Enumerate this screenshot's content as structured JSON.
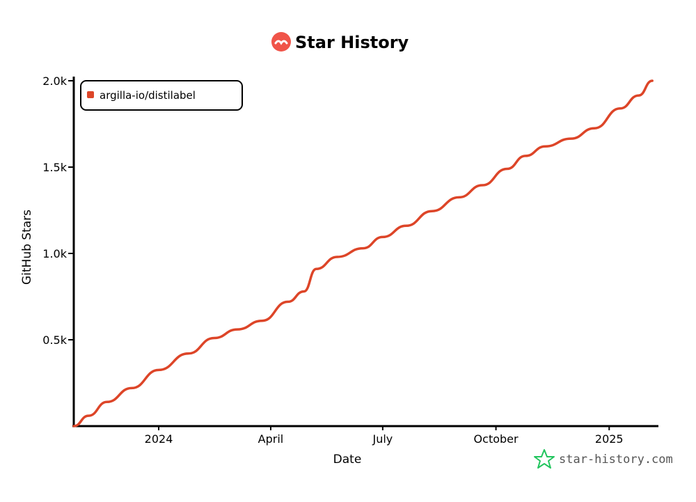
{
  "title": "Star History",
  "watermark": "star-history.com",
  "colors": {
    "series": "#dd4528",
    "title_icon": "#f05449",
    "watermark_icon": "#22c55e",
    "axis": "#000000"
  },
  "chart_data": {
    "type": "line",
    "title": "Star History",
    "xlabel": "Date",
    "ylabel": "GitHub Stars",
    "x_ticks": [
      {
        "date": "2024-01-01",
        "label": "2024"
      },
      {
        "date": "2024-04-01",
        "label": "April"
      },
      {
        "date": "2024-07-01",
        "label": "July"
      },
      {
        "date": "2024-10-01",
        "label": "October"
      },
      {
        "date": "2025-01-01",
        "label": "2025"
      }
    ],
    "y_ticks": [
      {
        "value": 500,
        "label": "0.5k"
      },
      {
        "value": 1000,
        "label": "1.0k"
      },
      {
        "value": 1500,
        "label": "1.5k"
      },
      {
        "value": 2000,
        "label": "2.0k"
      }
    ],
    "xlim": [
      "2023-10-24",
      "2025-02-10"
    ],
    "ylim": [
      0,
      2000
    ],
    "legend_position": "top-left",
    "series": [
      {
        "name": "argilla-io/distilabel",
        "points": [
          {
            "x": "2023-10-24",
            "y": 0
          },
          {
            "x": "2023-11-05",
            "y": 60
          },
          {
            "x": "2023-11-20",
            "y": 140
          },
          {
            "x": "2023-12-10",
            "y": 220
          },
          {
            "x": "2024-01-01",
            "y": 325
          },
          {
            "x": "2024-01-25",
            "y": 420
          },
          {
            "x": "2024-02-15",
            "y": 510
          },
          {
            "x": "2024-03-05",
            "y": 560
          },
          {
            "x": "2024-03-25",
            "y": 610
          },
          {
            "x": "2024-04-15",
            "y": 720
          },
          {
            "x": "2024-04-28",
            "y": 780
          },
          {
            "x": "2024-05-08",
            "y": 910
          },
          {
            "x": "2024-05-25",
            "y": 980
          },
          {
            "x": "2024-06-15",
            "y": 1030
          },
          {
            "x": "2024-07-01",
            "y": 1095
          },
          {
            "x": "2024-07-20",
            "y": 1160
          },
          {
            "x": "2024-08-10",
            "y": 1245
          },
          {
            "x": "2024-09-01",
            "y": 1325
          },
          {
            "x": "2024-09-20",
            "y": 1395
          },
          {
            "x": "2024-10-10",
            "y": 1490
          },
          {
            "x": "2024-10-25",
            "y": 1565
          },
          {
            "x": "2024-11-10",
            "y": 1620
          },
          {
            "x": "2024-12-01",
            "y": 1665
          },
          {
            "x": "2024-12-20",
            "y": 1725
          },
          {
            "x": "2025-01-10",
            "y": 1840
          },
          {
            "x": "2025-01-25",
            "y": 1915
          },
          {
            "x": "2025-02-05",
            "y": 2000
          }
        ]
      }
    ]
  }
}
